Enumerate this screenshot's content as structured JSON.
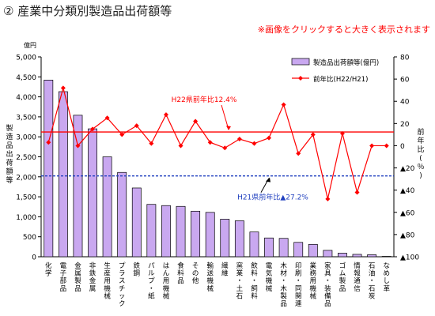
{
  "page": {
    "heading": "② 産業中分類別製造品出荷額等",
    "note": "※画像をクリックすると大きく表示されます"
  },
  "chart_data": {
    "type": "bar",
    "categories": [
      "化学",
      "電子部品",
      "金属製品",
      "非鉄金属",
      "生産用機械",
      "プラスチック",
      "鉄鋼",
      "パルプ・紙",
      "はん用機械",
      "食料品",
      "その他",
      "輸送機械",
      "繊維",
      "窯業・土石",
      "飲料・飼料",
      "電気機械",
      "木材・木製品",
      "印刷・同関連",
      "業務用機械",
      "家具・装備品",
      "ゴム製品",
      "情報通信",
      "石油・石炭",
      "なめし革"
    ],
    "left_axis": {
      "unit": "億円",
      "title": "製造品出荷額等",
      "ylim": [
        0,
        5000
      ],
      "ticks": [
        0,
        500,
        1000,
        1500,
        2000,
        2500,
        3000,
        3500,
        4000,
        4500,
        5000
      ]
    },
    "right_axis": {
      "unit": "％",
      "title": "前年比",
      "ylim": [
        -100,
        80
      ],
      "ticks": [
        80,
        60,
        40,
        20,
        0,
        -20,
        -40,
        -60,
        -80,
        -100
      ],
      "tick_labels": [
        "80",
        "60",
        "40",
        "20",
        "0",
        "▲20",
        "▲40",
        "▲60",
        "▲80",
        "▲100"
      ]
    },
    "series": [
      {
        "name": "製造品出荷額等(億円)",
        "type": "bar",
        "axis": "left",
        "color": "#c9a8f0",
        "values": [
          4420,
          4130,
          3540,
          3200,
          2500,
          2110,
          1720,
          1310,
          1280,
          1260,
          1140,
          1110,
          940,
          900,
          620,
          470,
          460,
          360,
          310,
          160,
          90,
          60,
          50,
          10
        ]
      },
      {
        "name": "前年比(H22/H21)",
        "type": "line",
        "axis": "right",
        "color": "#ff0000",
        "values": [
          3,
          52,
          0,
          15,
          25,
          10,
          18,
          2,
          28,
          0,
          22,
          3,
          -2,
          6,
          2,
          7,
          37,
          -7,
          10,
          -48,
          11,
          -42,
          0,
          0
        ]
      }
    ],
    "reference_lines": [
      {
        "label": "H22県前年比12.4%",
        "value": 12.4,
        "style": "solid",
        "color": "#ff0000"
      },
      {
        "label": "H21県前年比▲27.2%",
        "value": -27.2,
        "style": "dashed",
        "color": "#1f3fbf"
      }
    ],
    "legend": {
      "placement": "top-right"
    },
    "grid": false
  }
}
